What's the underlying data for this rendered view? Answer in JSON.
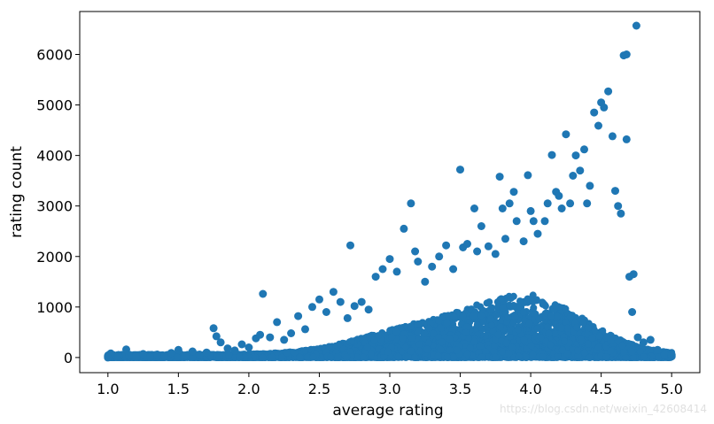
{
  "chart_data": {
    "type": "scatter",
    "title": "",
    "xlabel": "average rating",
    "ylabel": "rating count",
    "xlim": [
      0.8,
      5.2
    ],
    "ylim": [
      -300,
      6850
    ],
    "xticks": [
      1.0,
      1.5,
      2.0,
      2.5,
      3.0,
      3.5,
      4.0,
      4.5,
      5.0
    ],
    "xtick_labels": [
      "1.0",
      "1.5",
      "2.0",
      "2.5",
      "3.0",
      "3.5",
      "4.0",
      "4.5",
      "5.0"
    ],
    "yticks": [
      0,
      1000,
      2000,
      3000,
      4000,
      5000,
      6000
    ],
    "ytick_labels": [
      "0",
      "1000",
      "2000",
      "3000",
      "4000",
      "5000",
      "6000"
    ],
    "grid": false,
    "marker_color": "#1f77b4",
    "marker": "circle",
    "series": [
      {
        "points": [
          [
            1.0,
            30
          ],
          [
            1.02,
            80
          ],
          [
            1.0,
            0
          ],
          [
            1.13,
            160
          ],
          [
            1.15,
            40
          ],
          [
            1.2,
            20
          ],
          [
            1.25,
            70
          ],
          [
            1.3,
            10
          ],
          [
            1.35,
            60
          ],
          [
            1.4,
            30
          ],
          [
            1.45,
            90
          ],
          [
            1.5,
            150
          ],
          [
            1.55,
            40
          ],
          [
            1.6,
            120
          ],
          [
            1.65,
            60
          ],
          [
            1.7,
            100
          ],
          [
            1.75,
            580
          ],
          [
            1.77,
            420
          ],
          [
            1.8,
            300
          ],
          [
            1.85,
            180
          ],
          [
            1.9,
            140
          ],
          [
            1.95,
            260
          ],
          [
            2.0,
            200
          ],
          [
            2.05,
            380
          ],
          [
            2.08,
            450
          ],
          [
            2.1,
            1260
          ],
          [
            2.15,
            400
          ],
          [
            2.2,
            700
          ],
          [
            2.25,
            350
          ],
          [
            2.3,
            480
          ],
          [
            2.35,
            820
          ],
          [
            2.4,
            560
          ],
          [
            2.45,
            1000
          ],
          [
            2.5,
            1150
          ],
          [
            2.55,
            900
          ],
          [
            2.6,
            1300
          ],
          [
            2.65,
            1100
          ],
          [
            2.7,
            780
          ],
          [
            2.72,
            2220
          ],
          [
            2.75,
            1020
          ],
          [
            2.8,
            1100
          ],
          [
            2.85,
            950
          ],
          [
            2.9,
            1600
          ],
          [
            2.95,
            1750
          ],
          [
            3.0,
            1950
          ],
          [
            3.05,
            1700
          ],
          [
            3.1,
            2550
          ],
          [
            3.15,
            3050
          ],
          [
            3.18,
            2100
          ],
          [
            3.2,
            1900
          ],
          [
            3.25,
            1500
          ],
          [
            3.3,
            1800
          ],
          [
            3.35,
            2000
          ],
          [
            3.4,
            2220
          ],
          [
            3.45,
            1750
          ],
          [
            3.5,
            3720
          ],
          [
            3.52,
            2180
          ],
          [
            3.55,
            2250
          ],
          [
            3.6,
            2950
          ],
          [
            3.62,
            2100
          ],
          [
            3.65,
            2600
          ],
          [
            3.7,
            2200
          ],
          [
            3.75,
            2050
          ],
          [
            3.78,
            3580
          ],
          [
            3.8,
            2950
          ],
          [
            3.82,
            2350
          ],
          [
            3.85,
            3050
          ],
          [
            3.88,
            3280
          ],
          [
            3.9,
            2700
          ],
          [
            3.95,
            2300
          ],
          [
            3.98,
            3610
          ],
          [
            4.0,
            2900
          ],
          [
            4.02,
            2700
          ],
          [
            4.05,
            2450
          ],
          [
            4.1,
            2700
          ],
          [
            4.12,
            3050
          ],
          [
            4.15,
            4010
          ],
          [
            4.18,
            3280
          ],
          [
            4.2,
            3200
          ],
          [
            4.22,
            2950
          ],
          [
            4.25,
            4420
          ],
          [
            4.28,
            3050
          ],
          [
            4.3,
            3600
          ],
          [
            4.32,
            4000
          ],
          [
            4.35,
            3700
          ],
          [
            4.38,
            4120
          ],
          [
            4.4,
            3050
          ],
          [
            4.42,
            3400
          ],
          [
            4.45,
            4850
          ],
          [
            4.48,
            4590
          ],
          [
            4.5,
            5050
          ],
          [
            4.52,
            4950
          ],
          [
            4.55,
            5270
          ],
          [
            4.58,
            4380
          ],
          [
            4.6,
            3300
          ],
          [
            4.62,
            3000
          ],
          [
            4.64,
            2850
          ],
          [
            4.66,
            5980
          ],
          [
            4.68,
            6000
          ],
          [
            4.68,
            4320
          ],
          [
            4.7,
            1600
          ],
          [
            4.72,
            900
          ],
          [
            4.75,
            6570
          ],
          [
            4.73,
            1650
          ],
          [
            4.76,
            400
          ],
          [
            4.8,
            300
          ],
          [
            4.85,
            350
          ],
          [
            4.9,
            150
          ],
          [
            4.95,
            60
          ],
          [
            5.0,
            20
          ],
          [
            5.0,
            50
          ]
        ]
      }
    ]
  },
  "watermark": "https://blog.csdn.net/weixin_42608414"
}
